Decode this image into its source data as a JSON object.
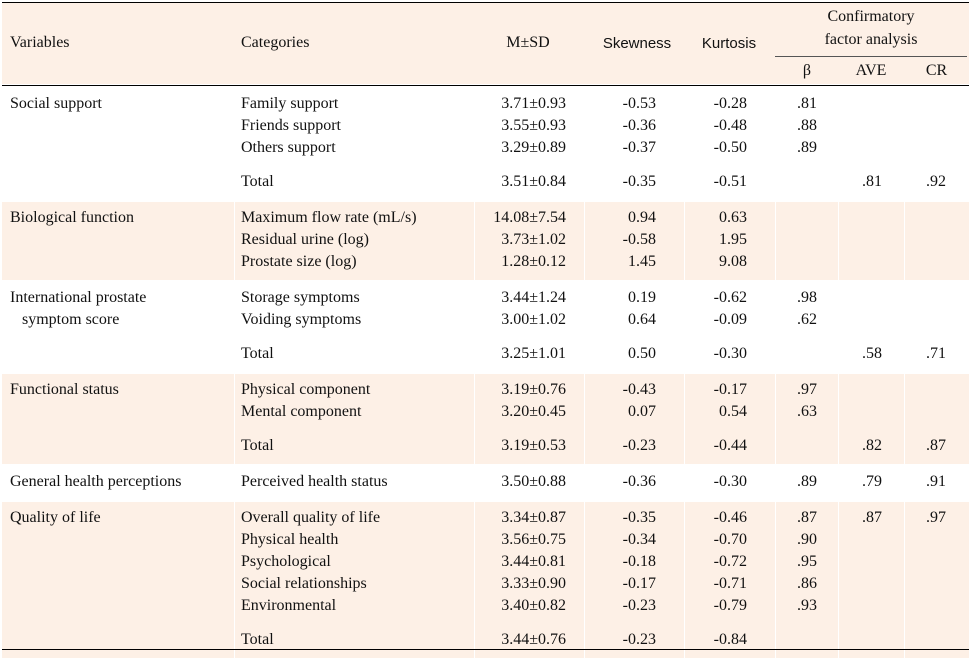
{
  "theme": {
    "band_color": "#fdf0e6",
    "rule_color": "#000000"
  },
  "header": {
    "variables": "Variables",
    "categories": "Categories",
    "msd": "M±SD",
    "skewness": "Skewness",
    "kurtosis": "Kurtosis",
    "cfa_line1": "Confirmatory",
    "cfa_line2": "factor analysis",
    "beta": "β",
    "ave": "AVE",
    "cr": "CR"
  },
  "groups": [
    {
      "variable": [
        "Social support"
      ],
      "shaded": false,
      "rows": [
        {
          "category": "Family support",
          "msd": "3.71±0.93",
          "skew": "-0.53",
          "kurt": "-0.28",
          "beta": ".81",
          "ave": "",
          "cr": ""
        },
        {
          "category": "Friends support",
          "msd": "3.55±0.93",
          "skew": "-0.36",
          "kurt": "-0.48",
          "beta": ".88",
          "ave": "",
          "cr": ""
        },
        {
          "category": "Others support",
          "msd": "3.29±0.89",
          "skew": "-0.37",
          "kurt": "-0.50",
          "beta": ".89",
          "ave": "",
          "cr": ""
        },
        {
          "category": "Total",
          "msd": "3.51±0.84",
          "skew": "-0.35",
          "kurt": "-0.51",
          "beta": "",
          "ave": ".81",
          "cr": ".92",
          "gap": true
        }
      ]
    },
    {
      "variable": [
        "Biological function"
      ],
      "shaded": true,
      "rows": [
        {
          "category": "Maximum flow rate (mL/s)",
          "msd": "14.08±7.54",
          "skew": "0.94",
          "kurt": "0.63",
          "beta": "",
          "ave": "",
          "cr": ""
        },
        {
          "category": "Residual urine (log)",
          "msd": "3.73±1.02",
          "skew": "-0.58",
          "kurt": "1.95",
          "beta": "",
          "ave": "",
          "cr": ""
        },
        {
          "category": "Prostate size (log)",
          "msd": "1.28±0.12",
          "skew": "1.45",
          "kurt": "9.08",
          "beta": "",
          "ave": "",
          "cr": ""
        }
      ]
    },
    {
      "variable": [
        "International prostate",
        "symptom score"
      ],
      "shaded": false,
      "rows": [
        {
          "category": "Storage symptoms",
          "msd": "3.44±1.24",
          "skew": "0.19",
          "kurt": "-0.62",
          "beta": ".98",
          "ave": "",
          "cr": ""
        },
        {
          "category": "Voiding symptoms",
          "msd": "3.00±1.02",
          "skew": "0.64",
          "kurt": "-0.09",
          "beta": ".62",
          "ave": "",
          "cr": ""
        },
        {
          "category": "Total",
          "msd": "3.25±1.01",
          "skew": "0.50",
          "kurt": "-0.30",
          "beta": "",
          "ave": ".58",
          "cr": ".71",
          "gap": true
        }
      ]
    },
    {
      "variable": [
        "Functional status"
      ],
      "shaded": true,
      "rows": [
        {
          "category": "Physical component",
          "msd": "3.19±0.76",
          "skew": "-0.43",
          "kurt": "-0.17",
          "beta": ".97",
          "ave": "",
          "cr": ""
        },
        {
          "category": "Mental component",
          "msd": "3.20±0.45",
          "skew": "0.07",
          "kurt": "0.54",
          "beta": ".63",
          "ave": "",
          "cr": ""
        },
        {
          "category": "Total",
          "msd": "3.19±0.53",
          "skew": "-0.23",
          "kurt": "-0.44",
          "beta": "",
          "ave": ".82",
          "cr": ".87",
          "gap": true
        }
      ]
    },
    {
      "variable": [
        "General health perceptions"
      ],
      "shaded": false,
      "rows": [
        {
          "category": "Perceived health status",
          "msd": "3.50±0.88",
          "skew": "-0.36",
          "kurt": "-0.30",
          "beta": ".89",
          "ave": ".79",
          "cr": ".91"
        }
      ]
    },
    {
      "variable": [
        "Quality of life"
      ],
      "shaded": true,
      "rows": [
        {
          "category": "Overall quality of life",
          "msd": "3.34±0.87",
          "skew": "-0.35",
          "kurt": "-0.46",
          "beta": ".87",
          "ave": ".87",
          "cr": ".97"
        },
        {
          "category": "Physical health",
          "msd": "3.56±0.75",
          "skew": "-0.34",
          "kurt": "-0.70",
          "beta": ".90",
          "ave": "",
          "cr": ""
        },
        {
          "category": "Psychological",
          "msd": "3.44±0.81",
          "skew": "-0.18",
          "kurt": "-0.72",
          "beta": ".95",
          "ave": "",
          "cr": ""
        },
        {
          "category": "Social relationships",
          "msd": "3.33±0.90",
          "skew": "-0.17",
          "kurt": "-0.71",
          "beta": ".86",
          "ave": "",
          "cr": ""
        },
        {
          "category": "Environmental",
          "msd": "3.40±0.82",
          "skew": "-0.23",
          "kurt": "-0.79",
          "beta": ".93",
          "ave": "",
          "cr": ""
        },
        {
          "category": "Total",
          "msd": "3.44±0.76",
          "skew": "-0.23",
          "kurt": "-0.84",
          "beta": "",
          "ave": "",
          "cr": "",
          "gap": true
        }
      ]
    }
  ]
}
